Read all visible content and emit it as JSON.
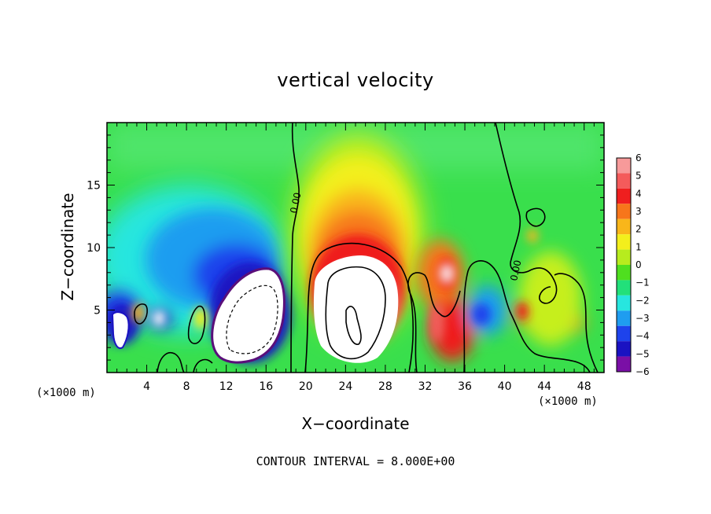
{
  "chart_data": {
    "type": "heatmap",
    "title": "vertical velocity",
    "xlabel": "X−coordinate",
    "ylabel": "Z−coordinate",
    "x_unit_left": "(×1000 m)",
    "x_unit_right": "(×1000 m)",
    "footer": "CONTOUR INTERVAL = 8.000E+00",
    "xlim": [
      0,
      50
    ],
    "ylim": [
      0,
      20
    ],
    "x_ticks": [
      "4",
      "8",
      "12",
      "16",
      "20",
      "24",
      "28",
      "32",
      "36",
      "40",
      "44",
      "48"
    ],
    "y_ticks": [
      "5",
      "10",
      "15"
    ],
    "colorbar": {
      "labels": [
        "6",
        "5",
        "4",
        "3",
        "2",
        "1",
        "0",
        "−1",
        "−2",
        "−3",
        "−4",
        "−5",
        "−6"
      ],
      "colors": [
        "#f79a9a",
        "#f45b5b",
        "#ef1f1f",
        "#f7761b",
        "#f9b61a",
        "#f3ef1c",
        "#b7ec1e",
        "#4fdf1f",
        "#22e07a",
        "#27e6df",
        "#1f9df0",
        "#1e43ec",
        "#1a12c2",
        "#7a0fa6"
      ]
    },
    "contour_label": "0.00",
    "features": [
      {
        "kind": "updraft",
        "x": 24.5,
        "z": 5,
        "level": "saturated"
      },
      {
        "kind": "downdraft",
        "x": 14,
        "z": 4.5,
        "level": "saturated"
      },
      {
        "kind": "updraft",
        "x": 34,
        "z": 8,
        "level": 6
      },
      {
        "kind": "downdraft",
        "x": 4,
        "z": 4,
        "level": "saturated"
      },
      {
        "kind": "downdraft",
        "x": 9,
        "z": 9,
        "level": -4
      }
    ]
  }
}
